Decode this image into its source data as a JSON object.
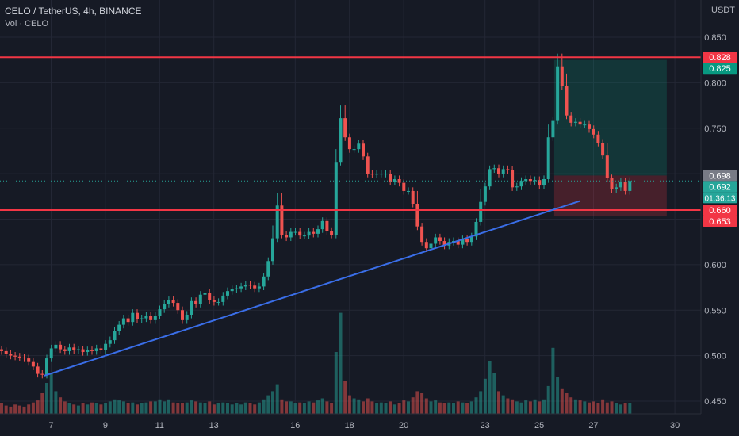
{
  "header": {
    "title": "CELO / TetherUS, 4h, BINANCE",
    "volume_label": "Vol · CELO",
    "currency": "USDT"
  },
  "colors": {
    "background": "#161a25",
    "up": "#26a69a",
    "down": "#ef5350",
    "hline": "#f23645",
    "trendline": "#3a6ee8",
    "grid": "#232735",
    "axis_text": "#b2b5be"
  },
  "chart_data": {
    "type": "candlestick",
    "symbol": "CELO / TetherUS",
    "interval": "4h",
    "exchange": "BINANCE",
    "y_range": [
      0.438,
      0.865
    ],
    "y_ticks": [
      0.45,
      0.5,
      0.55,
      0.6,
      0.65,
      0.7,
      0.75,
      0.8,
      0.85
    ],
    "y_tick_labels": [
      "0.450",
      "0.500",
      "0.550",
      "0.600",
      "0.650",
      "0.700",
      "0.750",
      "0.800",
      "0.850"
    ],
    "x_ticks": [
      {
        "label": "7",
        "day": 7
      },
      {
        "label": "9",
        "day": 9
      },
      {
        "label": "11",
        "day": 11
      },
      {
        "label": "13",
        "day": 13
      },
      {
        "label": "16",
        "day": 16
      },
      {
        "label": "18",
        "day": 18
      },
      {
        "label": "20",
        "day": 20
      },
      {
        "label": "23",
        "day": 23
      },
      {
        "label": "25",
        "day": 25
      },
      {
        "label": "27",
        "day": 27
      },
      {
        "label": "30",
        "day": 30
      }
    ],
    "closes": [
      0.505,
      0.502,
      0.5,
      0.499,
      0.498,
      0.497,
      0.493,
      0.488,
      0.48,
      0.479,
      0.497,
      0.508,
      0.512,
      0.507,
      0.505,
      0.509,
      0.506,
      0.507,
      0.504,
      0.506,
      0.505,
      0.508,
      0.506,
      0.513,
      0.517,
      0.527,
      0.534,
      0.541,
      0.537,
      0.547,
      0.54,
      0.541,
      0.544,
      0.539,
      0.544,
      0.551,
      0.557,
      0.561,
      0.558,
      0.55,
      0.539,
      0.545,
      0.56,
      0.557,
      0.567,
      0.569,
      0.561,
      0.559,
      0.559,
      0.566,
      0.571,
      0.573,
      0.574,
      0.576,
      0.578,
      0.577,
      0.574,
      0.576,
      0.587,
      0.604,
      0.629,
      0.665,
      0.633,
      0.63,
      0.636,
      0.636,
      0.632,
      0.632,
      0.636,
      0.634,
      0.639,
      0.648,
      0.637,
      0.633,
      0.713,
      0.761,
      0.74,
      0.727,
      0.727,
      0.733,
      0.719,
      0.7,
      0.699,
      0.7,
      0.7,
      0.7,
      0.691,
      0.694,
      0.69,
      0.681,
      0.681,
      0.667,
      0.642,
      0.625,
      0.618,
      0.623,
      0.63,
      0.626,
      0.621,
      0.625,
      0.626,
      0.622,
      0.628,
      0.625,
      0.631,
      0.647,
      0.669,
      0.686,
      0.705,
      0.706,
      0.7,
      0.705,
      0.704,
      0.685,
      0.686,
      0.692,
      0.694,
      0.692,
      0.693,
      0.687,
      0.694,
      0.74,
      0.758,
      0.818,
      0.796,
      0.764,
      0.756,
      0.757,
      0.754,
      0.754,
      0.749,
      0.743,
      0.734,
      0.72,
      0.695,
      0.683,
      0.685,
      0.691,
      0.681,
      0.692
    ],
    "volumes_relative": [
      0.1,
      0.08,
      0.07,
      0.09,
      0.08,
      0.07,
      0.09,
      0.11,
      0.13,
      0.2,
      0.3,
      0.4,
      0.22,
      0.16,
      0.12,
      0.1,
      0.09,
      0.08,
      0.1,
      0.09,
      0.11,
      0.1,
      0.09,
      0.1,
      0.12,
      0.14,
      0.13,
      0.12,
      0.1,
      0.11,
      0.09,
      0.1,
      0.11,
      0.12,
      0.12,
      0.14,
      0.12,
      0.14,
      0.11,
      0.1,
      0.1,
      0.11,
      0.13,
      0.12,
      0.11,
      0.1,
      0.12,
      0.09,
      0.1,
      0.11,
      0.1,
      0.09,
      0.1,
      0.09,
      0.11,
      0.1,
      0.09,
      0.11,
      0.14,
      0.18,
      0.22,
      0.28,
      0.14,
      0.12,
      0.12,
      0.1,
      0.11,
      0.1,
      0.12,
      0.11,
      0.13,
      0.15,
      0.12,
      0.1,
      0.6,
      0.98,
      0.32,
      0.18,
      0.15,
      0.14,
      0.12,
      0.15,
      0.12,
      0.1,
      0.11,
      0.1,
      0.12,
      0.09,
      0.1,
      0.13,
      0.12,
      0.16,
      0.22,
      0.2,
      0.15,
      0.12,
      0.13,
      0.11,
      0.1,
      0.11,
      0.1,
      0.12,
      0.11,
      0.1,
      0.12,
      0.16,
      0.22,
      0.34,
      0.51,
      0.4,
      0.22,
      0.18,
      0.15,
      0.14,
      0.12,
      0.11,
      0.13,
      0.12,
      0.14,
      0.12,
      0.14,
      0.27,
      0.64,
      0.36,
      0.24,
      0.2,
      0.16,
      0.14,
      0.13,
      0.12,
      0.11,
      0.12,
      0.1,
      0.14,
      0.11,
      0.12,
      0.1,
      0.09,
      0.1,
      0.1
    ],
    "horizontal_lines": [
      0.828,
      0.66
    ],
    "trendline": [
      {
        "day": 6.75,
        "value": 0.478
      },
      {
        "day": 26.5,
        "value": 0.67
      }
    ],
    "position": {
      "entry": 0.698,
      "target": 0.825,
      "stop": 0.653,
      "start_day": 25.55,
      "end_day": 29.7
    },
    "last_price": 0.692,
    "countdown": "01:36:13",
    "price_labels": [
      {
        "text": "0.828",
        "value": 0.828,
        "color": "#f23645"
      },
      {
        "text": "0.825",
        "value": 0.825,
        "color": "#089981"
      },
      {
        "text": "0.698",
        "value": 0.698,
        "color": "#787b86"
      },
      {
        "text": "0.692",
        "value": 0.692,
        "color": "#26a69a"
      },
      {
        "text": "01:36:13",
        "value": 0.692,
        "color": "#26a69a"
      },
      {
        "text": "0.660",
        "value": 0.66,
        "color": "#f23645"
      },
      {
        "text": "0.653",
        "value": 0.653,
        "color": "#f23645"
      }
    ]
  }
}
